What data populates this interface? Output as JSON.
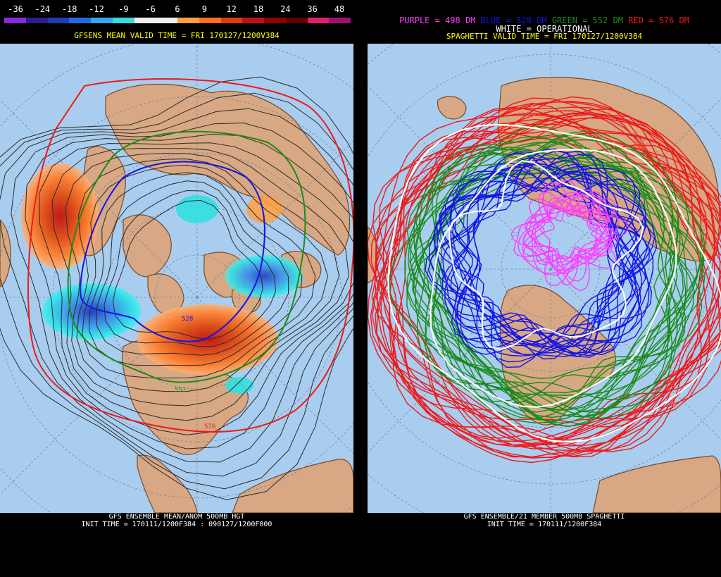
{
  "left": {
    "scale_labels": [
      "-36",
      "-24",
      "-18",
      "-12",
      "-9",
      "-6",
      "6",
      "9",
      "12",
      "18",
      "24",
      "36",
      "48"
    ],
    "scale_colors": [
      "#8a2be2",
      "#2a1e8c",
      "#1e3cb4",
      "#1f6be0",
      "#35a7f0",
      "#30e0e0",
      "#f0f0f0",
      "#f0f0f0",
      "#ffa040",
      "#ff7020",
      "#e03a10",
      "#c01010",
      "#900000",
      "#600000",
      "#e0206a",
      "#a01070"
    ],
    "valid_time": "GFSENS MEAN VALID TIME = FRI 170127/1200V384",
    "footer_line1": "GFS ENSEMBLE MEAN/ANOM 500MB HGT",
    "footer_line2": "INIT TIME = 170111/1200F384 : 090127/1200F000",
    "contour_labels": {
      "c528": "528",
      "c552": "552",
      "c576": "576"
    }
  },
  "right": {
    "legend": {
      "purple": "PURPLE = 498 DM",
      "blue": "BLUE = 528 DM",
      "green": "GREEN = 552 DM",
      "red": "RED = 576 DM",
      "white": "WHITE = OPERATIONAL"
    },
    "valid_time": "SPAGHETTI VALID TIME = FRI 170127/1200V384",
    "footer_line1": "GFS ENSEMBLE/21 MEMBER 500MB SPAGHETTI",
    "footer_line2": "INIT TIME = 170111/1200F384"
  },
  "colors": {
    "ocean": "#a9cdef",
    "land": "#d7a883",
    "coast": "#7a4a2a",
    "grid": "#6d86a6",
    "purple": "#ff3cff",
    "blue": "#1414e6",
    "green": "#1a8c1a",
    "red": "#ee1a1a",
    "white": "#ffffff"
  }
}
